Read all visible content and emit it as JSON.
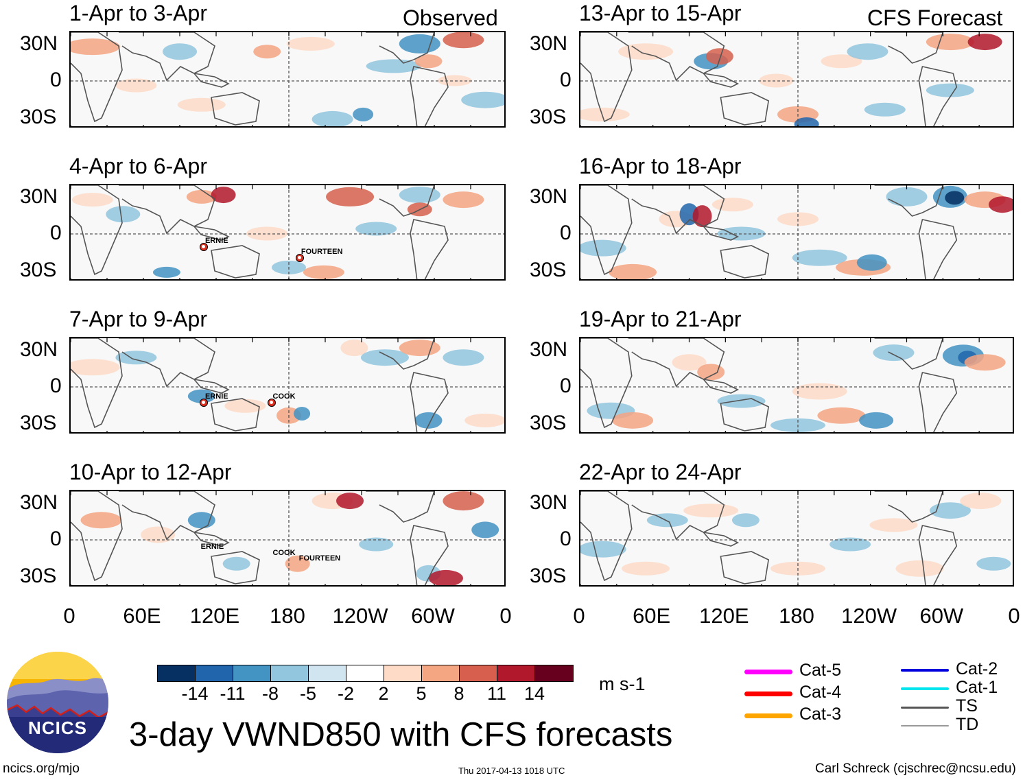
{
  "header": {
    "left_column_label": "Observed",
    "right_column_label": "CFS Forecast"
  },
  "panels": [
    {
      "period": "1-Apr to 3-Apr",
      "storms": []
    },
    {
      "period": "4-Apr to 6-Apr",
      "storms": [
        {
          "name": "ERNIE"
        },
        {
          "name": "FOURTEEN"
        }
      ]
    },
    {
      "period": "7-Apr to 9-Apr",
      "storms": [
        {
          "name": "ERNIE"
        },
        {
          "name": "COOK"
        }
      ]
    },
    {
      "period": "10-Apr to 12-Apr",
      "storms": [
        {
          "name": "ERNIE"
        },
        {
          "name": "COOK"
        },
        {
          "name": "FOURTEEN"
        }
      ]
    },
    {
      "period": "13-Apr to 15-Apr",
      "storms": []
    },
    {
      "period": "16-Apr to 18-Apr",
      "storms": []
    },
    {
      "period": "19-Apr to 21-Apr",
      "storms": []
    },
    {
      "period": "22-Apr to 24-Apr",
      "storms": []
    }
  ],
  "axes": {
    "lat_labels": [
      "30N",
      "0",
      "30S"
    ],
    "lon_labels": [
      "0",
      "60E",
      "120E",
      "180",
      "120W",
      "60W",
      "0"
    ]
  },
  "colorbar": {
    "colors": [
      "#053061",
      "#2166ac",
      "#4393c3",
      "#92c5de",
      "#d1e5f0",
      "#ffffff",
      "#fddbc7",
      "#f4a582",
      "#d6604d",
      "#b2182b",
      "#67001f"
    ],
    "ticks": [
      "-14",
      "-11",
      "-8",
      "-5",
      "-2",
      "2",
      "5",
      "8",
      "11",
      "14"
    ],
    "units": "m s-1"
  },
  "legend": [
    {
      "label": "Cat-5",
      "color": "#ff00ff"
    },
    {
      "label": "Cat-4",
      "color": "#ff0000"
    },
    {
      "label": "Cat-3",
      "color": "#ffa500"
    },
    {
      "label": "Cat-2",
      "color": "#0000dd"
    },
    {
      "label": "Cat-1",
      "color": "#00e5ee"
    },
    {
      "label": "TS",
      "color": "#555555"
    },
    {
      "label": "TD",
      "color": "#999999"
    }
  ],
  "title": "3-day VWND850 with CFS forecasts",
  "logo_text": "NCICS",
  "footer": {
    "url": "ncics.org/mjo",
    "timestamp": "Thu 2017-04-13 1018 UTC",
    "author": "Carl Schreck (cjschrec@ncsu.edu)"
  }
}
